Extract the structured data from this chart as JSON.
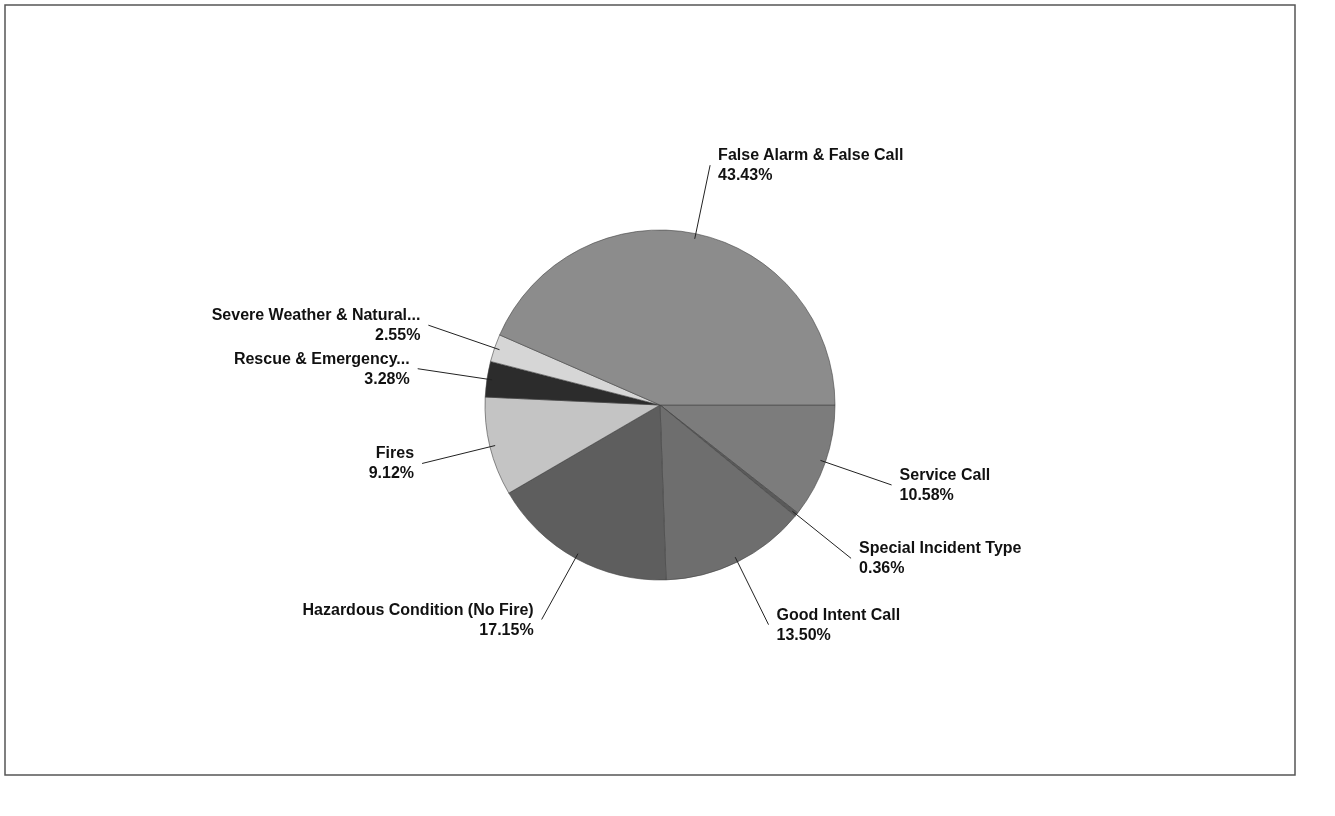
{
  "chart_data": {
    "type": "pie",
    "categories": [
      "Service Call",
      "Special Incident Type",
      "Good Intent Call",
      "Hazardous Condition (No Fire)",
      "Fires",
      "Rescue & Emergency...",
      "Severe Weather & Natural...",
      "False Alarm & False Call"
    ],
    "values": [
      10.58,
      0.36,
      13.5,
      17.15,
      9.12,
      3.28,
      2.55,
      43.43
    ],
    "value_labels": [
      "10.58%",
      "0.36%",
      "13.50%",
      "17.15%",
      "9.12%",
      "3.28%",
      "2.55%",
      "43.43%"
    ],
    "colors": [
      "#7c7c7c",
      "#5a5a5a",
      "#6e6e6e",
      "#5e5e5e",
      "#c4c4c4",
      "#2c2c2c",
      "#d6d6d6",
      "#8c8c8c"
    ],
    "legend": false
  }
}
